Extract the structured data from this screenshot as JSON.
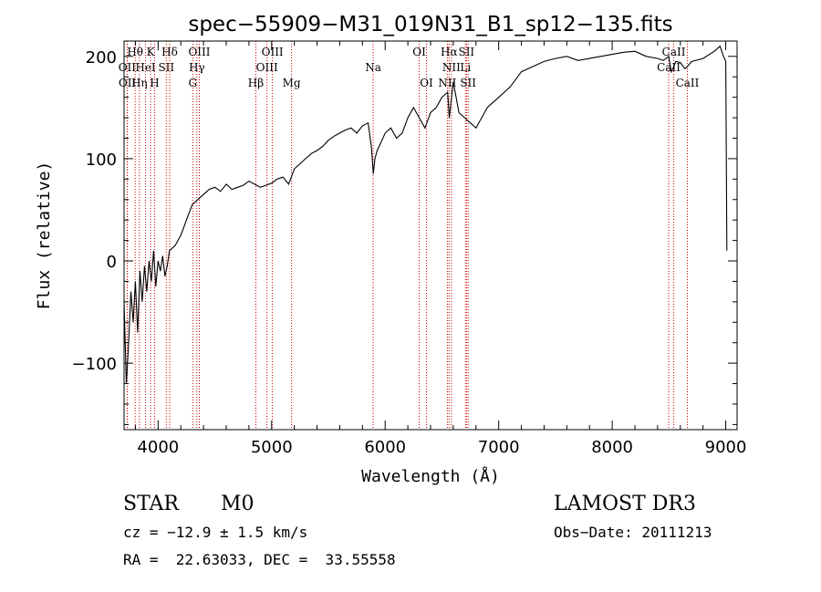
{
  "chart_data": {
    "type": "line",
    "title": "spec−55909−M31_019N31_B1_sp12−135.fits",
    "xlabel": "Wavelength (Å)",
    "ylabel": "Flux (relative)",
    "xlim": [
      3700,
      9100
    ],
    "ylim": [
      -165,
      215
    ],
    "x_ticks": [
      4000,
      5000,
      6000,
      7000,
      8000,
      9000
    ],
    "x_tick_labels": [
      "4000",
      "5000",
      "6000",
      "7000",
      "8000",
      "9000"
    ],
    "y_ticks": [
      -100,
      0,
      100,
      200
    ],
    "y_tick_labels": [
      "−100",
      "0",
      "100",
      "200"
    ],
    "grid": false,
    "series": [
      {
        "name": "spectrum",
        "x": [
          3700,
          3720,
          3740,
          3760,
          3780,
          3800,
          3820,
          3840,
          3860,
          3880,
          3900,
          3920,
          3940,
          3960,
          3980,
          4000,
          4020,
          4040,
          4060,
          4080,
          4100,
          4150,
          4200,
          4250,
          4300,
          4350,
          4400,
          4450,
          4500,
          4550,
          4600,
          4650,
          4700,
          4750,
          4800,
          4850,
          4900,
          4950,
          5000,
          5050,
          5100,
          5150,
          5200,
          5250,
          5300,
          5350,
          5400,
          5450,
          5500,
          5550,
          5600,
          5650,
          5700,
          5750,
          5800,
          5850,
          5880,
          5895,
          5910,
          5930,
          5960,
          6000,
          6050,
          6100,
          6150,
          6200,
          6250,
          6300,
          6350,
          6400,
          6450,
          6500,
          6550,
          6565,
          6600,
          6650,
          6700,
          6750,
          6800,
          6850,
          6900,
          6950,
          7000,
          7100,
          7200,
          7300,
          7400,
          7500,
          7600,
          7700,
          7800,
          7900,
          8000,
          8100,
          8200,
          8300,
          8400,
          8450,
          8498,
          8520,
          8542,
          8560,
          8600,
          8640,
          8662,
          8700,
          8800,
          8900,
          8950,
          8980,
          9000,
          9010
        ],
        "y": [
          -40,
          -120,
          -80,
          -30,
          -60,
          -20,
          -70,
          -10,
          -40,
          -5,
          -30,
          0,
          -20,
          10,
          -25,
          0,
          -10,
          5,
          -15,
          -5,
          10,
          15,
          25,
          40,
          55,
          60,
          65,
          70,
          72,
          68,
          75,
          70,
          72,
          74,
          78,
          75,
          72,
          74,
          76,
          80,
          82,
          75,
          90,
          95,
          100,
          105,
          108,
          112,
          118,
          122,
          125,
          128,
          130,
          125,
          132,
          135,
          110,
          85,
          100,
          108,
          115,
          125,
          130,
          120,
          125,
          140,
          150,
          140,
          130,
          145,
          150,
          160,
          165,
          140,
          175,
          145,
          140,
          135,
          130,
          140,
          150,
          155,
          160,
          170,
          185,
          190,
          195,
          198,
          200,
          196,
          198,
          200,
          202,
          204,
          205,
          200,
          198,
          196,
          200,
          185,
          190,
          195,
          194,
          188,
          190,
          195,
          198,
          205,
          210,
          200,
          195,
          10
        ]
      }
    ],
    "emission_lines": [
      {
        "label": "Hθ",
        "wavelength": 3798,
        "row": 1
      },
      {
        "label": "OII",
        "wavelength": 3727,
        "row": 2
      },
      {
        "label": "OII",
        "wavelength": 3729,
        "row": 3
      },
      {
        "label": "K",
        "wavelength": 3934,
        "row": 1
      },
      {
        "label": "HeI",
        "wavelength": 3889,
        "row": 2
      },
      {
        "label": "Hη",
        "wavelength": 3835,
        "row": 3
      },
      {
        "label": "H",
        "wavelength": 3969,
        "row": 3
      },
      {
        "label": "Hδ",
        "wavelength": 4102,
        "row": 1
      },
      {
        "label": "SII",
        "wavelength": 4072,
        "row": 2
      },
      {
        "label": "OIII",
        "wavelength": 4363,
        "row": 1
      },
      {
        "label": "Hγ",
        "wavelength": 4341,
        "row": 2
      },
      {
        "label": "G",
        "wavelength": 4305,
        "row": 3
      },
      {
        "label": "Hβ",
        "wavelength": 4861,
        "row": 3
      },
      {
        "label": "OIII",
        "wavelength": 5007,
        "row": 1
      },
      {
        "label": "OIII",
        "wavelength": 4959,
        "row": 2
      },
      {
        "label": "Mg",
        "wavelength": 5175,
        "row": 3
      },
      {
        "label": "Na",
        "wavelength": 5894,
        "row": 2
      },
      {
        "label": "OI",
        "wavelength": 6300,
        "row": 1
      },
      {
        "label": "OI",
        "wavelength": 6364,
        "row": 3
      },
      {
        "label": "Hα",
        "wavelength": 6563,
        "row": 1
      },
      {
        "label": "SII",
        "wavelength": 6716,
        "row": 1
      },
      {
        "label": "NII",
        "wavelength": 6584,
        "row": 2
      },
      {
        "label": "Li",
        "wavelength": 6708,
        "row": 2
      },
      {
        "label": "NII",
        "wavelength": 6548,
        "row": 3
      },
      {
        "label": "SII",
        "wavelength": 6731,
        "row": 3
      },
      {
        "label": "CaII",
        "wavelength": 8542,
        "row": 1
      },
      {
        "label": "CaII",
        "wavelength": 8498,
        "row": 2
      },
      {
        "label": "CaII",
        "wavelength": 8662,
        "row": 3
      }
    ]
  },
  "info": {
    "object_class": "STAR",
    "subclass": "M0",
    "survey": "LAMOST DR3",
    "redshift_line": "cz = −12.9 ± 1.5 km/s",
    "obs_date_line": "Obs−Date: 20111213",
    "coords_line": "RA =  22.63033, DEC =  33.55558"
  },
  "colors": {
    "spectrum": "#000000",
    "emission_line": "#cc0000",
    "axes": "#000000"
  }
}
